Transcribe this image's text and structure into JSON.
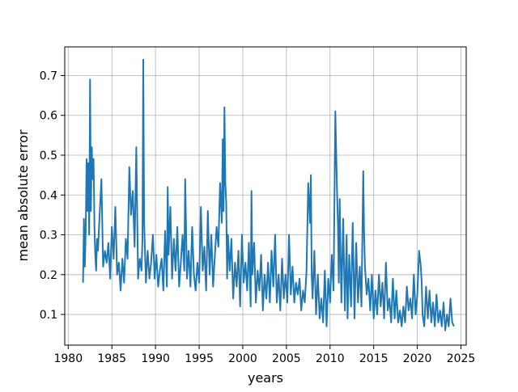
{
  "chart_data": {
    "type": "line",
    "title": "",
    "xlabel": "years",
    "ylabel": "mean absolute error",
    "xlim": [
      1979.6,
      2025.6
    ],
    "ylim": [
      0.023,
      0.772
    ],
    "x_ticks": [
      1980,
      1985,
      1990,
      1995,
      2000,
      2005,
      2010,
      2015,
      2020,
      2025
    ],
    "x_tick_labels": [
      "1980",
      "1985",
      "1990",
      "1995",
      "2000",
      "2005",
      "2010",
      "2015",
      "2020",
      "2025"
    ],
    "y_ticks": [
      0.1,
      0.2,
      0.3,
      0.4,
      0.5,
      0.6,
      0.7
    ],
    "y_tick_labels": [
      "0.1",
      "0.2",
      "0.3",
      "0.4",
      "0.5",
      "0.6",
      "0.7"
    ],
    "grid": true,
    "legend": "none",
    "series": [
      {
        "color": "#1f77b4",
        "x": [
          1981.7,
          1981.8,
          1981.9,
          1982.0,
          1982.1,
          1982.2,
          1982.3,
          1982.4,
          1982.5,
          1982.6,
          1982.7,
          1982.8,
          1982.9,
          1983.0,
          1983.1,
          1983.2,
          1983.3,
          1983.4,
          1983.6,
          1983.8,
          1984.0,
          1984.2,
          1984.4,
          1984.6,
          1984.8,
          1985.0,
          1985.2,
          1985.4,
          1985.6,
          1985.8,
          1986.0,
          1986.2,
          1986.4,
          1986.6,
          1986.8,
          1987.0,
          1987.2,
          1987.4,
          1987.6,
          1987.8,
          1988.0,
          1988.2,
          1988.4,
          1988.5,
          1988.6,
          1988.7,
          1988.9,
          1989.1,
          1989.3,
          1989.5,
          1989.7,
          1989.9,
          1990.1,
          1990.3,
          1990.5,
          1990.7,
          1990.9,
          1991.1,
          1991.3,
          1991.4,
          1991.5,
          1991.7,
          1991.9,
          1992.1,
          1992.3,
          1992.5,
          1992.7,
          1992.9,
          1993.1,
          1993.3,
          1993.4,
          1993.6,
          1993.8,
          1994.0,
          1994.2,
          1994.4,
          1994.6,
          1994.8,
          1995.0,
          1995.2,
          1995.4,
          1995.6,
          1995.8,
          1996.0,
          1996.2,
          1996.4,
          1996.6,
          1996.8,
          1997.0,
          1997.2,
          1997.4,
          1997.6,
          1997.7,
          1997.8,
          1997.9,
          1998.0,
          1998.1,
          1998.2,
          1998.3,
          1998.5,
          1998.7,
          1998.9,
          1999.1,
          1999.3,
          1999.5,
          1999.7,
          1999.9,
          2000.1,
          2000.3,
          2000.5,
          2000.7,
          2000.9,
          2001.0,
          2001.1,
          2001.3,
          2001.5,
          2001.7,
          2001.9,
          2002.1,
          2002.3,
          2002.5,
          2002.7,
          2002.9,
          2003.1,
          2003.3,
          2003.5,
          2003.7,
          2003.9,
          2004.1,
          2004.3,
          2004.5,
          2004.7,
          2004.9,
          2005.1,
          2005.3,
          2005.5,
          2005.7,
          2005.9,
          2006.1,
          2006.3,
          2006.5,
          2006.7,
          2006.9,
          2007.1,
          2007.3,
          2007.5,
          2007.7,
          2007.8,
          2007.9,
          2008.0,
          2008.2,
          2008.4,
          2008.6,
          2008.8,
          2009.0,
          2009.2,
          2009.4,
          2009.6,
          2009.8,
          2010.0,
          2010.2,
          2010.4,
          2010.6,
          2010.8,
          2010.9,
          2011.0,
          2011.1,
          2011.3,
          2011.5,
          2011.7,
          2011.9,
          2012.0,
          2012.2,
          2012.4,
          2012.6,
          2012.8,
          2013.0,
          2013.2,
          2013.4,
          2013.6,
          2013.8,
          2013.9,
          2014.0,
          2014.2,
          2014.4,
          2014.6,
          2014.8,
          2015.0,
          2015.2,
          2015.4,
          2015.6,
          2015.8,
          2016.0,
          2016.2,
          2016.4,
          2016.6,
          2016.8,
          2017.0,
          2017.2,
          2017.4,
          2017.6,
          2017.8,
          2018.0,
          2018.2,
          2018.4,
          2018.6,
          2018.8,
          2019.0,
          2019.2,
          2019.4,
          2019.6,
          2019.8,
          2020.0,
          2020.2,
          2020.4,
          2020.5,
          2020.6,
          2020.8,
          2021.0,
          2021.2,
          2021.4,
          2021.6,
          2021.8,
          2022.0,
          2022.2,
          2022.4,
          2022.6,
          2022.8,
          2023.0,
          2023.2,
          2023.4,
          2023.6,
          2023.8,
          2024.0,
          2024.2
        ],
        "y": [
          0.18,
          0.34,
          0.22,
          0.31,
          0.49,
          0.36,
          0.48,
          0.3,
          0.69,
          0.36,
          0.52,
          0.44,
          0.49,
          0.32,
          0.25,
          0.21,
          0.29,
          0.26,
          0.35,
          0.44,
          0.22,
          0.26,
          0.23,
          0.28,
          0.19,
          0.32,
          0.24,
          0.37,
          0.2,
          0.23,
          0.16,
          0.24,
          0.18,
          0.29,
          0.24,
          0.47,
          0.35,
          0.41,
          0.27,
          0.52,
          0.19,
          0.24,
          0.21,
          0.29,
          0.74,
          0.33,
          0.18,
          0.26,
          0.19,
          0.23,
          0.3,
          0.19,
          0.25,
          0.17,
          0.21,
          0.24,
          0.16,
          0.31,
          0.17,
          0.42,
          0.25,
          0.37,
          0.19,
          0.29,
          0.21,
          0.32,
          0.17,
          0.23,
          0.3,
          0.21,
          0.44,
          0.19,
          0.26,
          0.17,
          0.32,
          0.2,
          0.16,
          0.23,
          0.18,
          0.37,
          0.21,
          0.27,
          0.16,
          0.36,
          0.2,
          0.3,
          0.17,
          0.25,
          0.32,
          0.27,
          0.43,
          0.33,
          0.54,
          0.36,
          0.62,
          0.43,
          0.38,
          0.19,
          0.3,
          0.21,
          0.29,
          0.14,
          0.23,
          0.17,
          0.26,
          0.12,
          0.3,
          0.18,
          0.23,
          0.16,
          0.28,
          0.12,
          0.41,
          0.2,
          0.28,
          0.13,
          0.21,
          0.16,
          0.25,
          0.11,
          0.2,
          0.14,
          0.23,
          0.13,
          0.26,
          0.17,
          0.3,
          0.13,
          0.2,
          0.11,
          0.24,
          0.14,
          0.2,
          0.13,
          0.3,
          0.15,
          0.22,
          0.13,
          0.18,
          0.15,
          0.19,
          0.11,
          0.16,
          0.13,
          0.21,
          0.43,
          0.33,
          0.45,
          0.2,
          0.14,
          0.26,
          0.1,
          0.2,
          0.09,
          0.14,
          0.08,
          0.21,
          0.07,
          0.19,
          0.13,
          0.25,
          0.16,
          0.61,
          0.41,
          0.33,
          0.18,
          0.39,
          0.13,
          0.34,
          0.11,
          0.3,
          0.09,
          0.25,
          0.12,
          0.33,
          0.09,
          0.28,
          0.13,
          0.22,
          0.12,
          0.46,
          0.31,
          0.22,
          0.15,
          0.19,
          0.11,
          0.2,
          0.09,
          0.16,
          0.1,
          0.2,
          0.12,
          0.18,
          0.09,
          0.23,
          0.11,
          0.14,
          0.08,
          0.19,
          0.09,
          0.16,
          0.08,
          0.11,
          0.07,
          0.12,
          0.08,
          0.17,
          0.11,
          0.14,
          0.09,
          0.2,
          0.1,
          0.15,
          0.26,
          0.22,
          0.18,
          0.1,
          0.07,
          0.17,
          0.09,
          0.16,
          0.08,
          0.13,
          0.07,
          0.15,
          0.08,
          0.11,
          0.07,
          0.13,
          0.06,
          0.1,
          0.07,
          0.14,
          0.08,
          0.07
        ]
      }
    ]
  }
}
